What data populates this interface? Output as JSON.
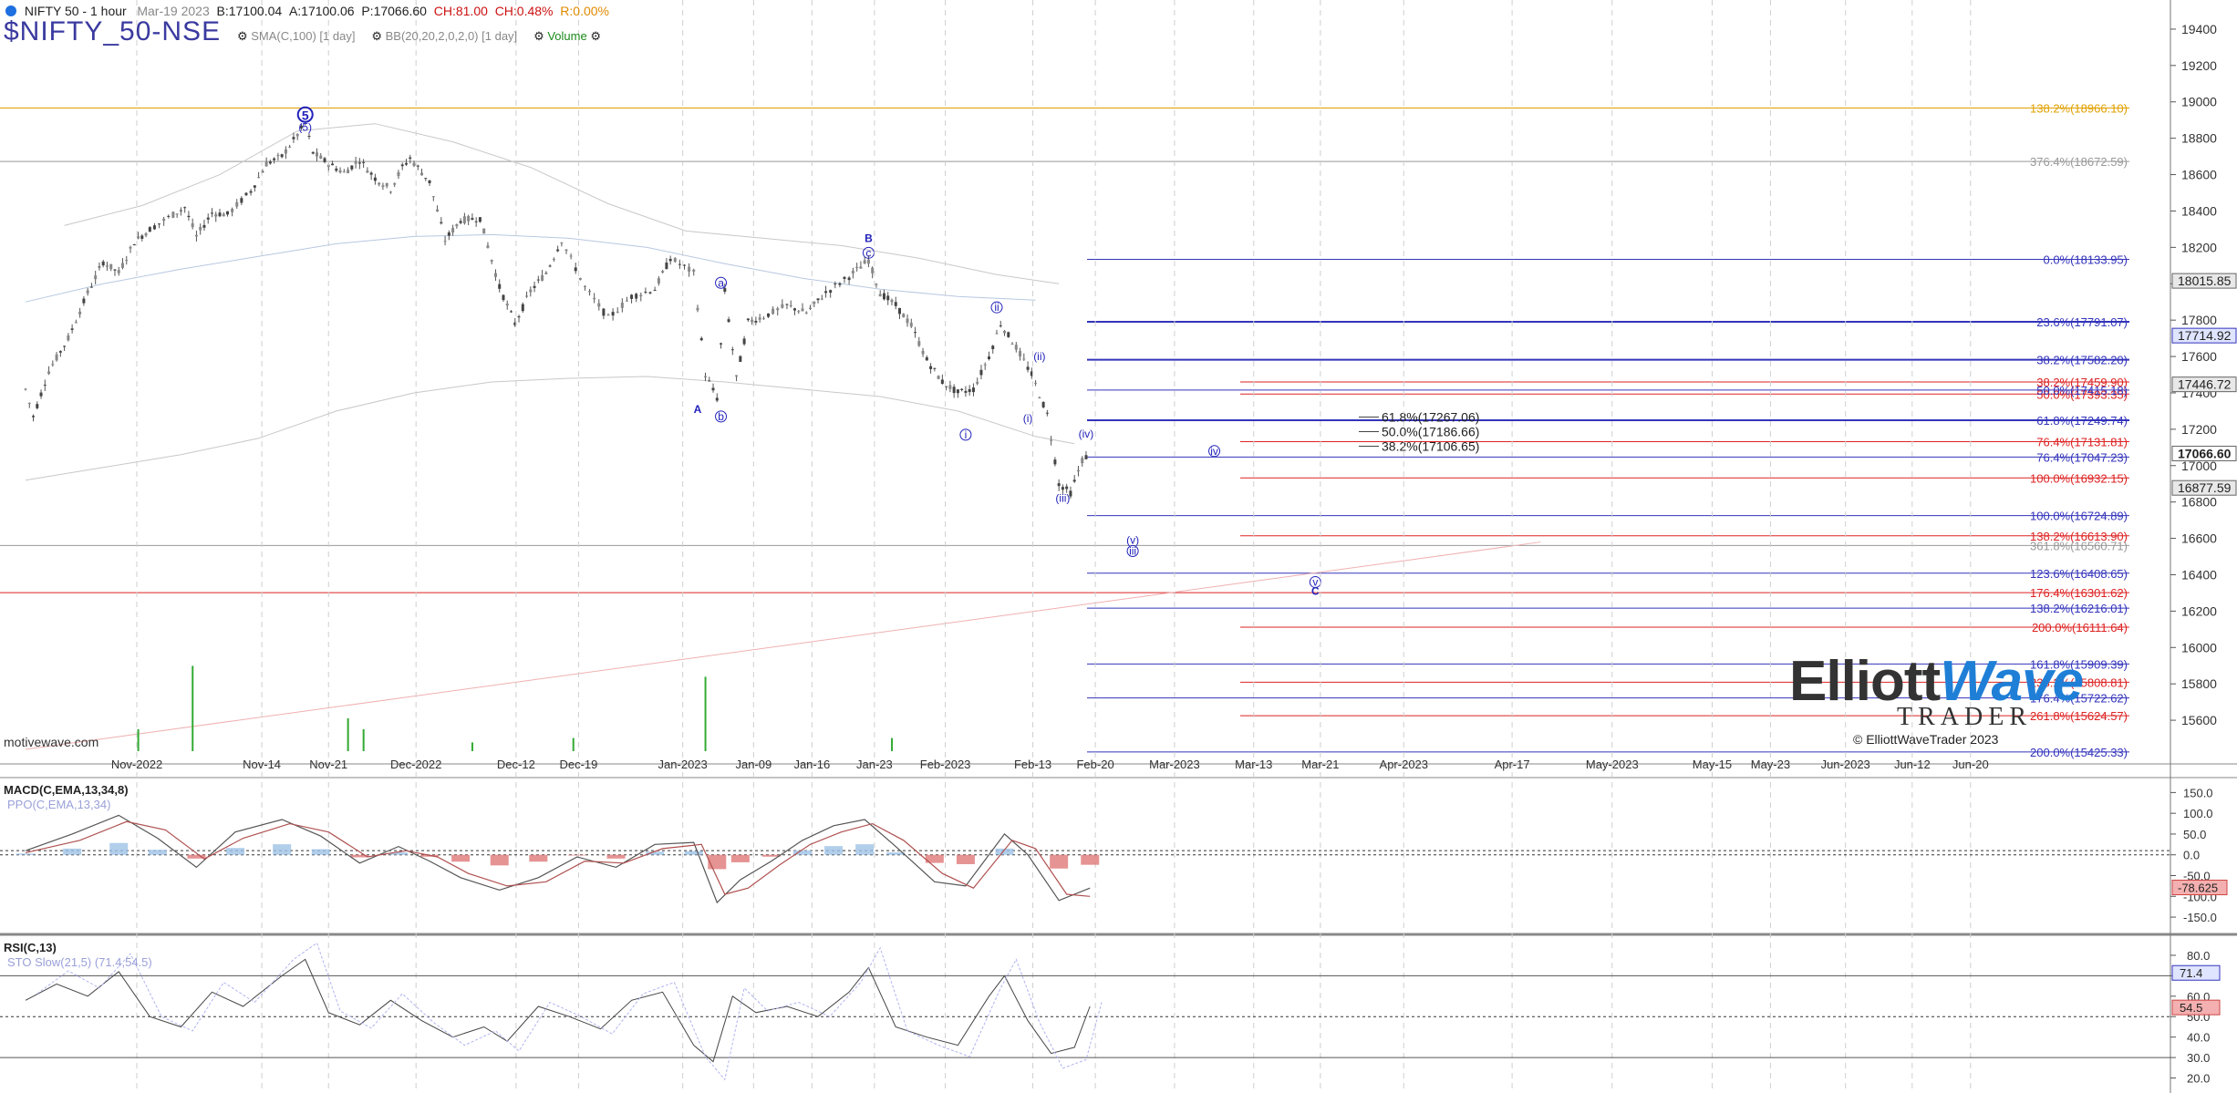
{
  "header": {
    "instrument": "NIFTY 50 - 1 hour",
    "date": "Mar-19 2023",
    "bid": "B:17100.04",
    "ask": "A:17100.06",
    "price": "P:17066.60",
    "change": "CH:81.00",
    "change_pct": "CH:0.48%",
    "range": "R:0.00%",
    "symbol": "$NIFTY_50-NSE",
    "ind_sma": "SMA(C,100)",
    "ind_sma_tf": "[1 day]",
    "ind_bb": "BB(20,20,2,0,2,0)",
    "ind_bb_tf": "[1 day]",
    "ind_volume": "Volume"
  },
  "watermark": "motivewave.com",
  "logo": {
    "word1": "Elliott",
    "word2": "Wave",
    "word3": "TRADER",
    "copyright": "© ElliottWaveTrader 2023"
  },
  "colors": {
    "candles": "#555555",
    "fib_blue": "#3333bb",
    "fib_red": "#dd2222",
    "fib_orange": "#e0a000",
    "volume": "#33aa33",
    "macd_pos": "#9ec2e6",
    "macd_neg": "#e07878"
  },
  "chart_data": [
    {
      "type": "candlestick",
      "title": "NIFTY 50 - 1 hour",
      "price_axis": {
        "ticks": [
          19400,
          19200,
          19000,
          18800,
          18600,
          18400,
          18200,
          18000,
          17800,
          17600,
          17400,
          17200,
          17000,
          16800,
          16600,
          16400,
          16200,
          16000,
          15800,
          15600
        ],
        "range": [
          15420,
          19520
        ]
      },
      "x_ticks": [
        "Nov-2022",
        "Nov-14",
        "Nov-21",
        "Dec-2022",
        "Dec-12",
        "Dec-19",
        "Jan-2023",
        "Jan-09",
        "Jan-16",
        "Jan-23",
        "Feb-2023",
        "Feb-13",
        "Feb-20",
        "Mar-2023",
        "Mar-13",
        "Mar-21",
        "Apr-2023",
        "Apr-17",
        "May-2023",
        "May-15",
        "May-23",
        "Jun-2023",
        "Jun-12",
        "Jun-20"
      ],
      "price_badges": [
        {
          "value": "18015.85",
          "price": 18015.85,
          "style": "grey"
        },
        {
          "value": "17714.92",
          "price": 17714.92,
          "style": "blue"
        },
        {
          "value": "17446.72",
          "price": 17446.72,
          "style": "grey"
        },
        {
          "value": "17066.60",
          "price": 17066.6,
          "style": "dark"
        },
        {
          "value": "16877.59",
          "price": 16877.59,
          "style": "grey"
        }
      ],
      "fib_levels": [
        {
          "label": "138.2%(18966.10)",
          "price": 18966.1,
          "color": "orange"
        },
        {
          "label": "376.4%(18672.59)",
          "price": 18672.59,
          "color": "grey"
        },
        {
          "label": "0.0%(18133.95)",
          "price": 18133.95,
          "color": "blue"
        },
        {
          "label": "23.6%(17791.07)",
          "price": 17791.07,
          "color": "blue"
        },
        {
          "label": "38.2%(17582.20)",
          "price": 17582.2,
          "color": "blue"
        },
        {
          "label": "38.2%(17459.90)",
          "price": 17459.9,
          "color": "red"
        },
        {
          "label": "50.0%(17393.35)",
          "price": 17393.35,
          "color": "red"
        },
        {
          "label": "50.0%(17415.18)",
          "price": 17415.18,
          "color": "blue"
        },
        {
          "label": "61.8%(17249.74)",
          "price": 17249.74,
          "color": "blue"
        },
        {
          "label": "76.4%(17131.81)",
          "price": 17131.81,
          "color": "red"
        },
        {
          "label": "76.4%(17047.23)",
          "price": 17047.23,
          "color": "blue"
        },
        {
          "label": "100.0%(16932.15)",
          "price": 16932.15,
          "color": "red"
        },
        {
          "label": "100.0%(16724.89)",
          "price": 16724.89,
          "color": "blue"
        },
        {
          "label": "138.2%(16613.90)",
          "price": 16613.9,
          "color": "red"
        },
        {
          "label": "361.8%(16560.71)",
          "price": 16560.71,
          "color": "grey"
        },
        {
          "label": "123.6%(16408.65)",
          "price": 16408.65,
          "color": "blue"
        },
        {
          "label": "176.4%(16301.62)",
          "price": 16301.62,
          "color": "red"
        },
        {
          "label": "138.2%(16216.01)",
          "price": 16216.01,
          "color": "blue"
        },
        {
          "label": "200.0%(16111.64)",
          "price": 16111.64,
          "color": "red"
        },
        {
          "label": "161.8%(15909.39)",
          "price": 15909.39,
          "color": "blue"
        },
        {
          "label": "238.2%(15808.81)",
          "price": 15808.81,
          "color": "red"
        },
        {
          "label": "176.4%(15722.62)",
          "price": 15722.62,
          "color": "blue"
        },
        {
          "label": "261.8%(15624.57)",
          "price": 15624.57,
          "color": "red"
        },
        {
          "label": "200.0%(15425.33)",
          "price": 15425.33,
          "color": "blue"
        }
      ],
      "inner_fibs": [
        {
          "label": "61.8%(17267.06)",
          "price": 17267.06
        },
        {
          "label": "50.0%(17186.66)",
          "price": 17186.66
        },
        {
          "label": "38.2%(17106.65)",
          "price": 17106.65
        }
      ],
      "wave_labels": [
        {
          "text": "5",
          "price": 18910,
          "week": 3.6,
          "style": "circle-big"
        },
        {
          "text": "(5)",
          "price": 18840,
          "week": 3.6,
          "style": "plain"
        },
        {
          "text": "B",
          "price": 18230,
          "week": 10.85,
          "style": "plain-bold"
        },
        {
          "text": "c",
          "price": 18150,
          "week": 10.85,
          "style": "circle"
        },
        {
          "text": "a",
          "price": 17985,
          "week": 8.95,
          "style": "circle"
        },
        {
          "text": "A",
          "price": 17290,
          "week": 8.65,
          "style": "plain-bold"
        },
        {
          "text": "b",
          "price": 17250,
          "week": 8.95,
          "style": "circle"
        },
        {
          "text": "i",
          "price": 17150,
          "week": 12.1,
          "style": "circle"
        },
        {
          "text": "ii",
          "price": 17850,
          "week": 12.5,
          "style": "circle"
        },
        {
          "text": "(i)",
          "price": 17240,
          "week": 12.9,
          "style": "plain"
        },
        {
          "text": "(ii)",
          "price": 17580,
          "week": 13.05,
          "style": "plain"
        },
        {
          "text": "(iii)",
          "price": 16800,
          "week": 13.35,
          "style": "plain"
        },
        {
          "text": "(iv)",
          "price": 17155,
          "week": 13.65,
          "style": "plain"
        },
        {
          "text": "iv",
          "price": 17060,
          "week": 15.3,
          "style": "circle"
        },
        {
          "text": "(v)",
          "price": 16570,
          "week": 14.25,
          "style": "plain"
        },
        {
          "text": "iii",
          "price": 16510,
          "week": 14.25,
          "style": "circle"
        },
        {
          "text": "v",
          "price": 16340,
          "week": 16.6,
          "style": "circle"
        },
        {
          "text": "C",
          "price": 16290,
          "week": 16.6,
          "style": "plain-bold"
        }
      ],
      "price_points": [
        [
          0,
          17420
        ],
        [
          0.1,
          17270
        ],
        [
          0.3,
          17520
        ],
        [
          0.55,
          17700
        ],
        [
          0.8,
          17950
        ],
        [
          1.0,
          18120
        ],
        [
          1.2,
          18060
        ],
        [
          1.4,
          18230
        ],
        [
          1.6,
          18300
        ],
        [
          1.9,
          18380
        ],
        [
          2.05,
          18420
        ],
        [
          2.2,
          18260
        ],
        [
          2.4,
          18390
        ],
        [
          2.6,
          18380
        ],
        [
          2.9,
          18510
        ],
        [
          3.1,
          18660
        ],
        [
          3.3,
          18700
        ],
        [
          3.5,
          18820
        ],
        [
          3.6,
          18880
        ],
        [
          3.7,
          18720
        ],
        [
          3.9,
          18660
        ],
        [
          4.1,
          18610
        ],
        [
          4.3,
          18680
        ],
        [
          4.5,
          18580
        ],
        [
          4.7,
          18520
        ],
        [
          4.85,
          18640
        ],
        [
          4.95,
          18690
        ],
        [
          5.2,
          18560
        ],
        [
          5.4,
          18240
        ],
        [
          5.6,
          18350
        ],
        [
          5.85,
          18360
        ],
        [
          6.1,
          17980
        ],
        [
          6.3,
          17780
        ],
        [
          6.5,
          17960
        ],
        [
          6.7,
          18060
        ],
        [
          6.9,
          18240
        ],
        [
          7.2,
          17980
        ],
        [
          7.5,
          17810
        ],
        [
          7.8,
          17930
        ],
        [
          8.1,
          17970
        ],
        [
          8.3,
          18140
        ],
        [
          8.6,
          18060
        ],
        [
          8.75,
          17500
        ],
        [
          8.9,
          17370
        ],
        [
          9.0,
          17960
        ],
        [
          9.15,
          17480
        ],
        [
          9.3,
          17790
        ],
        [
          9.5,
          17820
        ],
        [
          9.8,
          17880
        ],
        [
          10.05,
          17840
        ],
        [
          10.3,
          17950
        ],
        [
          10.6,
          18040
        ],
        [
          10.85,
          18130
        ],
        [
          11.0,
          17950
        ],
        [
          11.2,
          17880
        ],
        [
          11.4,
          17770
        ],
        [
          11.6,
          17580
        ],
        [
          11.8,
          17460
        ],
        [
          12.0,
          17400
        ],
        [
          12.2,
          17420
        ],
        [
          12.4,
          17600
        ],
        [
          12.55,
          17780
        ],
        [
          12.75,
          17650
        ],
        [
          12.95,
          17500
        ],
        [
          13.15,
          17280
        ],
        [
          13.3,
          16900
        ],
        [
          13.45,
          16850
        ],
        [
          13.6,
          17030
        ],
        [
          13.7,
          17066
        ]
      ],
      "ma_points": [
        [
          0,
          17900
        ],
        [
          1,
          18000
        ],
        [
          2,
          18080
        ],
        [
          3,
          18150
        ],
        [
          4,
          18220
        ],
        [
          5,
          18260
        ],
        [
          6,
          18270
        ],
        [
          7,
          18250
        ],
        [
          8,
          18200
        ],
        [
          9,
          18110
        ],
        [
          10,
          18030
        ],
        [
          11,
          17970
        ],
        [
          12,
          17930
        ],
        [
          13,
          17910
        ]
      ],
      "bb_upper": [
        [
          0.5,
          18320
        ],
        [
          1.5,
          18430
        ],
        [
          2.5,
          18600
        ],
        [
          3.5,
          18840
        ],
        [
          4.5,
          18880
        ],
        [
          5.5,
          18780
        ],
        [
          6.5,
          18640
        ],
        [
          7.5,
          18440
        ],
        [
          8.5,
          18290
        ],
        [
          9.5,
          18250
        ],
        [
          10.5,
          18210
        ],
        [
          11.5,
          18140
        ],
        [
          12.5,
          18050
        ],
        [
          13.3,
          18000
        ]
      ],
      "bb_lower": [
        [
          0,
          16920
        ],
        [
          1,
          16990
        ],
        [
          2,
          17060
        ],
        [
          3,
          17150
        ],
        [
          4,
          17300
        ],
        [
          5,
          17400
        ],
        [
          6,
          17460
        ],
        [
          7,
          17480
        ],
        [
          8,
          17490
        ],
        [
          9,
          17460
        ],
        [
          10,
          17420
        ],
        [
          11,
          17380
        ],
        [
          12,
          17300
        ],
        [
          13,
          17160
        ],
        [
          13.5,
          17120
        ]
      ],
      "volume_bars": [
        [
          0.5,
          0.2
        ],
        [
          1.2,
          0.78
        ],
        [
          3.2,
          0.3
        ],
        [
          3.4,
          0.2
        ],
        [
          7.8,
          0.68
        ],
        [
          10.2,
          0.12
        ],
        [
          6.1,
          0.12
        ],
        [
          4.8,
          0.08
        ]
      ],
      "channel": {
        "start": [
          0,
          15440
        ],
        "end": [
          19.5,
          16580
        ]
      }
    },
    {
      "type": "line",
      "title": "MACD(C,EMA,13,34,8)",
      "sub_label": "PPO(C,EMA,13,34)",
      "y_ticks": [
        150,
        100,
        50,
        0,
        -50,
        -100,
        -150
      ],
      "range": [
        -185,
        175
      ],
      "last_value": "-78.625",
      "macd": [
        [
          0,
          10
        ],
        [
          0.6,
          50
        ],
        [
          1.2,
          95
        ],
        [
          1.7,
          40
        ],
        [
          2.2,
          -30
        ],
        [
          2.7,
          55
        ],
        [
          3.3,
          85
        ],
        [
          3.8,
          45
        ],
        [
          4.3,
          -20
        ],
        [
          4.8,
          20
        ],
        [
          5.2,
          -15
        ],
        [
          5.6,
          -55
        ],
        [
          6.1,
          -85
        ],
        [
          6.6,
          -55
        ],
        [
          7.1,
          -5
        ],
        [
          7.6,
          -30
        ],
        [
          8.1,
          25
        ],
        [
          8.6,
          30
        ],
        [
          8.9,
          -115
        ],
        [
          9.2,
          -60
        ],
        [
          9.6,
          -15
        ],
        [
          10.0,
          35
        ],
        [
          10.4,
          70
        ],
        [
          10.8,
          85
        ],
        [
          11.2,
          20
        ],
        [
          11.7,
          -65
        ],
        [
          12.1,
          -75
        ],
        [
          12.6,
          50
        ],
        [
          12.9,
          0
        ],
        [
          13.3,
          -110
        ],
        [
          13.7,
          -80
        ]
      ],
      "signal": [
        [
          0,
          5
        ],
        [
          0.7,
          35
        ],
        [
          1.3,
          80
        ],
        [
          1.8,
          60
        ],
        [
          2.3,
          -10
        ],
        [
          2.8,
          40
        ],
        [
          3.4,
          75
        ],
        [
          3.9,
          55
        ],
        [
          4.4,
          -5
        ],
        [
          4.9,
          10
        ],
        [
          5.3,
          -5
        ],
        [
          5.7,
          -45
        ],
        [
          6.2,
          -75
        ],
        [
          6.7,
          -65
        ],
        [
          7.2,
          -15
        ],
        [
          7.7,
          -20
        ],
        [
          8.2,
          15
        ],
        [
          8.7,
          25
        ],
        [
          9.0,
          -95
        ],
        [
          9.3,
          -80
        ],
        [
          9.7,
          -25
        ],
        [
          10.1,
          25
        ],
        [
          10.5,
          55
        ],
        [
          10.9,
          75
        ],
        [
          11.3,
          35
        ],
        [
          11.8,
          -45
        ],
        [
          12.2,
          -80
        ],
        [
          12.7,
          35
        ],
        [
          13.0,
          15
        ],
        [
          13.4,
          -95
        ],
        [
          13.7,
          -100
        ]
      ]
    },
    {
      "type": "line",
      "title": "RSI(C,13)",
      "sub_label": "STO Slow(21,5) (71.4,54.5)",
      "y_ticks": [
        80,
        70,
        60,
        50,
        40,
        30,
        20
      ],
      "range": [
        14,
        88
      ],
      "last_values": [
        "71.4",
        "54.5"
      ],
      "rsi": [
        [
          0,
          58
        ],
        [
          0.4,
          66
        ],
        [
          0.8,
          60
        ],
        [
          1.2,
          72
        ],
        [
          1.6,
          50
        ],
        [
          2.0,
          45
        ],
        [
          2.4,
          62
        ],
        [
          2.8,
          55
        ],
        [
          3.3,
          70
        ],
        [
          3.6,
          78
        ],
        [
          3.9,
          52
        ],
        [
          4.3,
          46
        ],
        [
          4.7,
          58
        ],
        [
          5.1,
          48
        ],
        [
          5.5,
          40
        ],
        [
          5.9,
          45
        ],
        [
          6.2,
          38
        ],
        [
          6.6,
          55
        ],
        [
          7.0,
          50
        ],
        [
          7.4,
          44
        ],
        [
          7.8,
          58
        ],
        [
          8.2,
          62
        ],
        [
          8.6,
          36
        ],
        [
          8.85,
          28
        ],
        [
          9.1,
          60
        ],
        [
          9.4,
          52
        ],
        [
          9.8,
          55
        ],
        [
          10.2,
          50
        ],
        [
          10.6,
          62
        ],
        [
          10.85,
          74
        ],
        [
          11.2,
          45
        ],
        [
          11.6,
          40
        ],
        [
          12.0,
          36
        ],
        [
          12.4,
          60
        ],
        [
          12.6,
          70
        ],
        [
          12.9,
          48
        ],
        [
          13.2,
          32
        ],
        [
          13.5,
          35
        ],
        [
          13.7,
          55
        ]
      ]
    }
  ]
}
